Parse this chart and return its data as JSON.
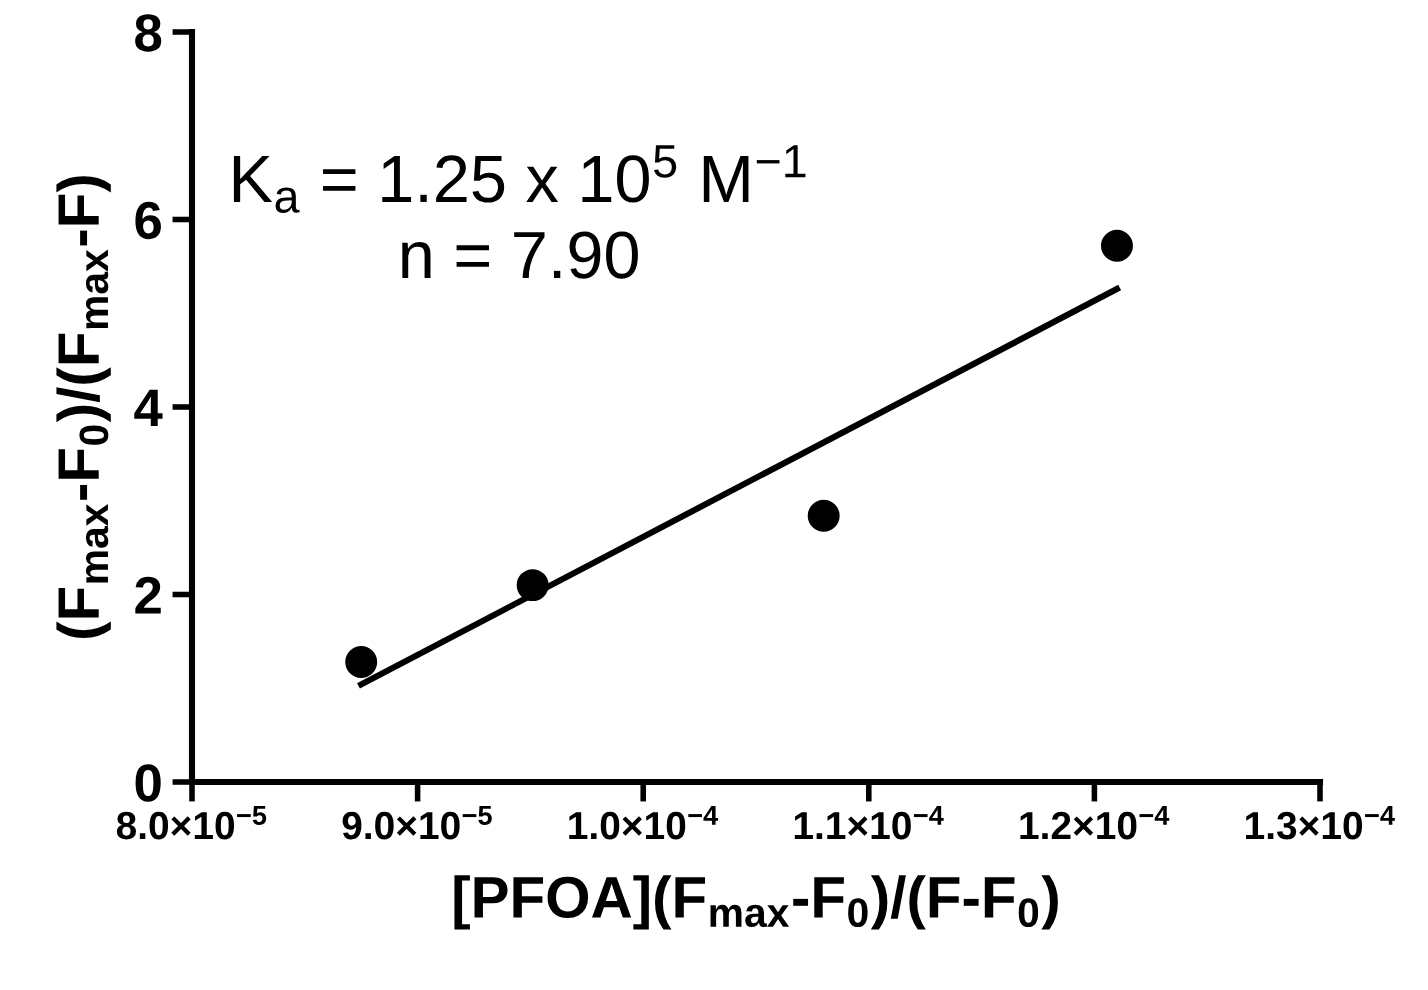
{
  "chart_data": {
    "type": "scatter",
    "xlabel": "[PFOA](F$_{max}$-F$_{0}$)/(F-F$_{0}$)",
    "ylabel": "(F$_{max}$-F$_{0}$)/(F$_{max}$-F)",
    "series": [
      {
        "color": "#000000",
        "marker": "circle",
        "x": [
          8.75e-05,
          9.51e-05,
          0.000108,
          0.000121
        ],
        "values": [
          1.28,
          2.1,
          2.84,
          5.72
        ]
      },
      {
        "type": "line",
        "color": "#000000",
        "marker": "none",
        "line_style": "solid",
        "x": [
          8.75e-05,
          0.000121
        ],
        "values": [
          1.04,
          5.26
        ]
      }
    ],
    "xlim": [
      8e-05,
      0.00013
    ],
    "xticks": [
      {
        "value": 8e-05,
        "label": "8.0×10$^{−5}$"
      },
      {
        "value": 9e-05,
        "label": "9.0×10$^{−5}$"
      },
      {
        "value": 0.0001,
        "label": "1.0×10$^{−4}$"
      },
      {
        "value": 0.00011,
        "label": "1.1×10$^{−4}$"
      },
      {
        "value": 0.00012,
        "label": "1.2×10$^{−4}$"
      },
      {
        "value": 0.00013,
        "label": "1.3×10$^{−4}$"
      }
    ],
    "ylim": [
      0,
      8
    ],
    "yticks": [
      0,
      2,
      4,
      6,
      8
    ],
    "annotations": [
      "K$_{a}$ = 1.25 x 10$^{5}$ M$^{−1}$",
      "n = 7.90"
    ],
    "grid": false,
    "legend": false
  }
}
